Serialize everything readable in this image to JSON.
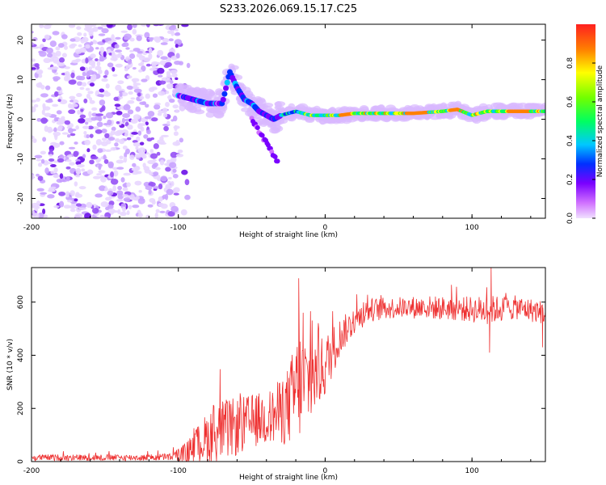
{
  "title": "S233.2026.069.15.17.C25",
  "colors": {
    "snr_line": "#ee3030",
    "axis": "#000000",
    "background": "#ffffff"
  },
  "chart_data": [
    {
      "type": "heatmap",
      "name": "spectrogram",
      "xlabel": "Height of straight line (km)",
      "ylabel": "Frequency (Hz)",
      "xlim": [
        -200,
        150
      ],
      "ylim": [
        -25,
        24
      ],
      "xticks": [
        -200,
        -100,
        0,
        100
      ],
      "xtick_labels": [
        "-200",
        "-100",
        "0",
        "100"
      ],
      "yticks": [
        -20,
        -10,
        0,
        10,
        20
      ],
      "ytick_labels": [
        "-20",
        "-10",
        "0",
        "10",
        "20"
      ],
      "colorbar": {
        "label": "Normalized spectral amplitude",
        "range": [
          0,
          1
        ],
        "ticks": [
          0.0,
          0.2,
          0.4,
          0.6,
          0.8
        ],
        "tick_labels": [
          "0.0",
          "0.2",
          "0.4",
          "0.6",
          "0.8"
        ],
        "colormap": "magenta-blue-cyan-green-yellow-red"
      },
      "features": [
        {
          "name": "noise-region",
          "x_range": [
            -200,
            -100
          ],
          "y_range": [
            -25,
            24
          ],
          "amplitude": 0.1
        },
        {
          "name": "carrier-trace",
          "points": [
            [
              -100,
              6
            ],
            [
              -90,
              5
            ],
            [
              -80,
              4
            ],
            [
              -70,
              4
            ],
            [
              -65,
              12
            ],
            [
              -60,
              8
            ],
            [
              -55,
              5
            ],
            [
              -50,
              4
            ],
            [
              -45,
              2
            ],
            [
              -40,
              1
            ],
            [
              -35,
              0
            ],
            [
              -30,
              1
            ],
            [
              -20,
              2
            ],
            [
              -10,
              1
            ],
            [
              0,
              1
            ],
            [
              10,
              1
            ],
            [
              20,
              1.5
            ],
            [
              40,
              1.5
            ],
            [
              60,
              1.5
            ],
            [
              80,
              2
            ],
            [
              90,
              2.5
            ],
            [
              100,
              1
            ],
            [
              110,
              2
            ],
            [
              130,
              2
            ],
            [
              150,
              2
            ]
          ],
          "amplitude_peak": 1.0
        },
        {
          "name": "falling-branch",
          "points": [
            [
              -50,
              0
            ],
            [
              -45,
              -3
            ],
            [
              -40,
              -6
            ],
            [
              -35,
              -9
            ],
            [
              -32,
              -11
            ]
          ],
          "amplitude": 0.3
        }
      ]
    },
    {
      "type": "line",
      "name": "snr",
      "xlabel": "Height of straight line (km)",
      "ylabel": "SNR (10 * v/v)",
      "xlim": [
        -200,
        150
      ],
      "ylim": [
        0,
        730
      ],
      "xticks": [
        -200,
        -100,
        0,
        100
      ],
      "xtick_labels": [
        "-200",
        "-100",
        "0",
        "100"
      ],
      "yticks": [
        0,
        200,
        400,
        600
      ],
      "ytick_labels": [
        "0",
        "200",
        "400",
        "600"
      ],
      "envelope": {
        "x": [
          -200,
          -160,
          -120,
          -105,
          -95,
          -85,
          -75,
          -60,
          -45,
          -35,
          -25,
          -18,
          -12,
          -5,
          0,
          10,
          20,
          30,
          50,
          70,
          90,
          110,
          130,
          150
        ],
        "mean": [
          15,
          15,
          15,
          18,
          30,
          70,
          110,
          130,
          160,
          170,
          210,
          290,
          300,
          330,
          360,
          470,
          530,
          570,
          580,
          580,
          575,
          570,
          580,
          560
        ],
        "spread": [
          12,
          12,
          12,
          15,
          40,
          80,
          120,
          110,
          100,
          110,
          150,
          220,
          180,
          130,
          120,
          70,
          50,
          45,
          40,
          45,
          45,
          55,
          45,
          45
        ]
      },
      "spikes": [
        [
          -18,
          690
        ],
        [
          -15,
          560
        ],
        [
          113,
          735
        ],
        [
          86,
          665
        ],
        [
          112,
          410
        ],
        [
          148,
          430
        ]
      ]
    }
  ]
}
